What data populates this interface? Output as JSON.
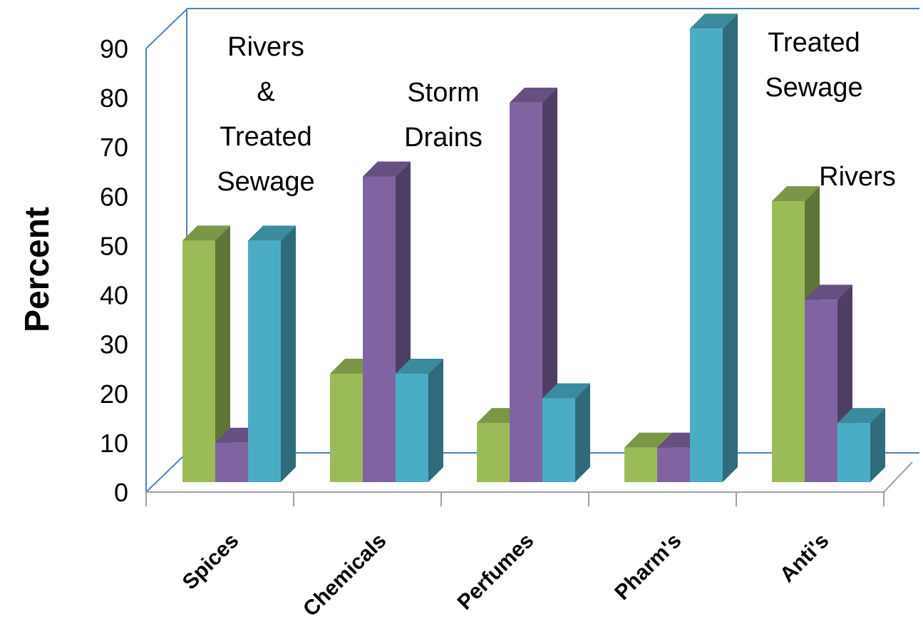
{
  "chart_data": {
    "type": "bar",
    "style": "3d-clustered-column",
    "title": "",
    "xlabel": "",
    "ylabel": "Percent",
    "ylim": [
      0,
      90
    ],
    "yticks": [
      "0",
      "10",
      "20",
      "30",
      "40",
      "50",
      "60",
      "70",
      "80",
      "90"
    ],
    "categories": [
      "Spices",
      "Chemicals",
      "Perfumes",
      "Pharm's",
      "Anti's"
    ],
    "series": [
      {
        "color": "#9BBB59",
        "values": [
          49,
          22,
          12,
          7,
          57
        ]
      },
      {
        "color": "#8064A2",
        "values": [
          8,
          62,
          77,
          7,
          37
        ]
      },
      {
        "color": "#4BACC6",
        "values": [
          49,
          22,
          17,
          92,
          12
        ]
      }
    ],
    "annotations": [
      {
        "lines": [
          "Rivers",
          "&",
          "Treated",
          "Sewage"
        ]
      },
      {
        "lines": [
          "Storm",
          "Drains"
        ]
      },
      {
        "lines": [
          "Treated",
          "Sewage"
        ]
      },
      {
        "lines": [
          "Rivers"
        ]
      }
    ],
    "grid": false,
    "legend": "none"
  }
}
